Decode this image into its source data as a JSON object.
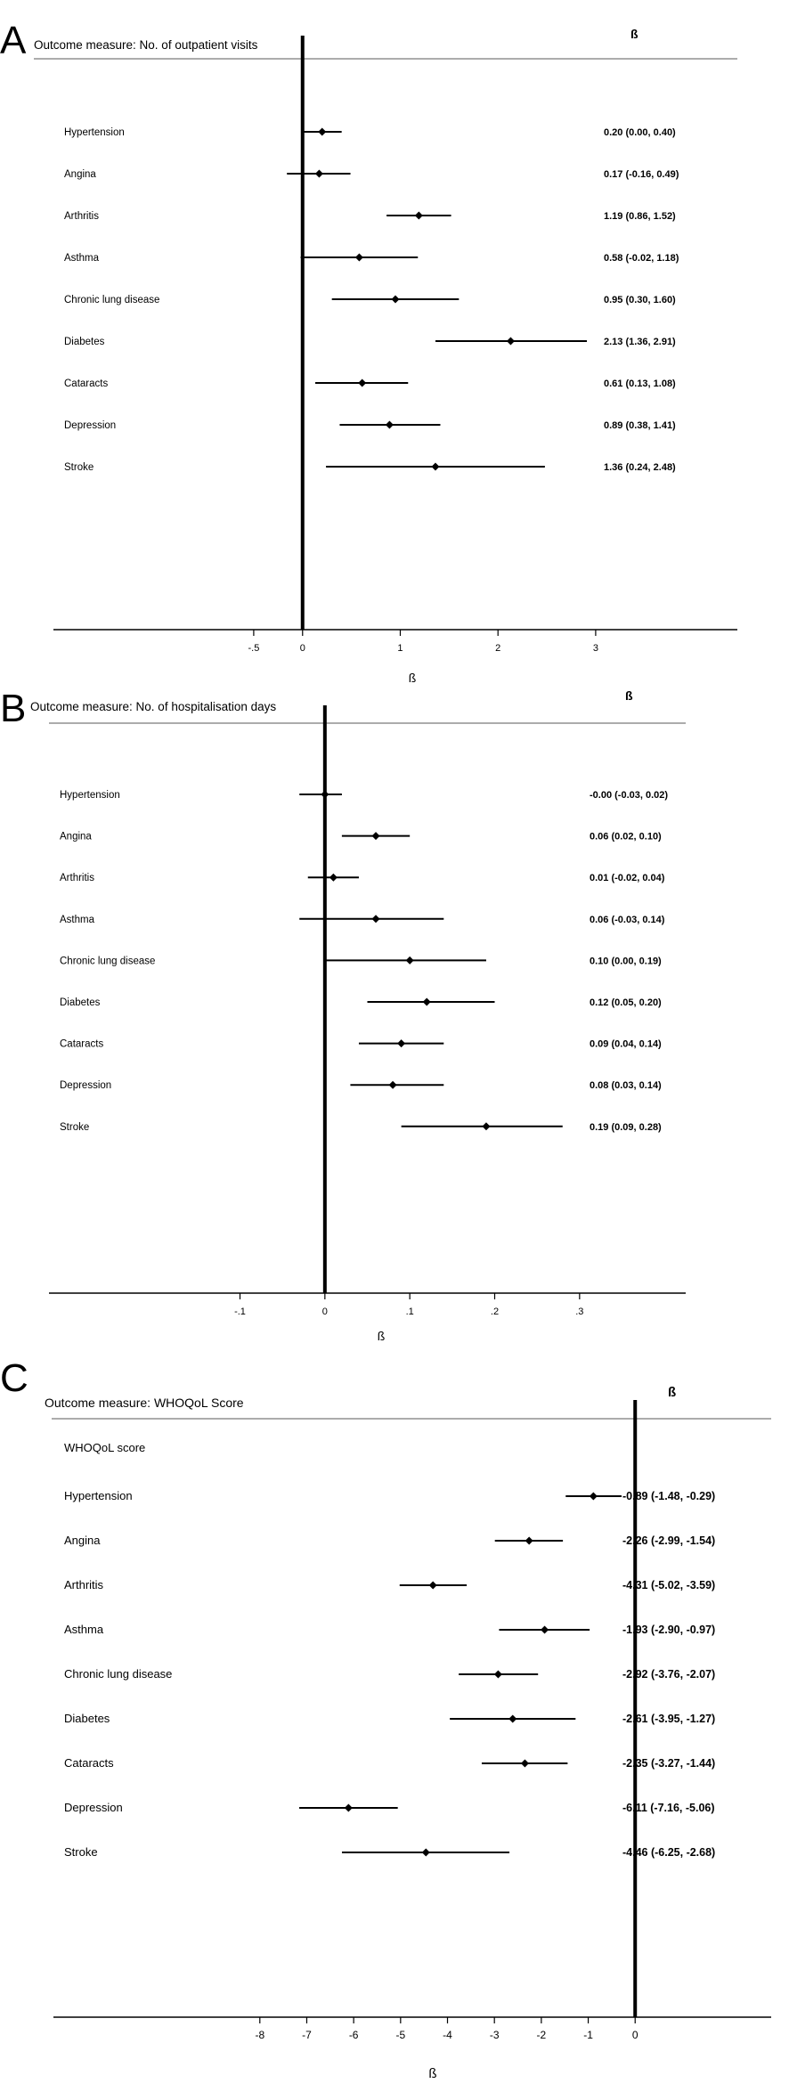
{
  "chart_data": [
    {
      "type": "forest",
      "panel_letter": "A",
      "title": "Outcome measure: No. of outpatient visits",
      "estimate_header": "ß",
      "xlabel": "ß",
      "x_ticks": [
        -0.5,
        0,
        1,
        2,
        3
      ],
      "x_tick_labels": [
        "-.5",
        "0",
        "1",
        "2",
        "3"
      ],
      "xlim": [
        -2.55,
        4.45
      ],
      "rows": [
        {
          "label": "Hypertension",
          "beta": 0.2,
          "lo": 0.0,
          "hi": 0.4,
          "text": "0.20 (0.00, 0.40)"
        },
        {
          "label": "Angina",
          "beta": 0.17,
          "lo": -0.16,
          "hi": 0.49,
          "text": "0.17 (-0.16, 0.49)"
        },
        {
          "label": "Arthritis",
          "beta": 1.19,
          "lo": 0.86,
          "hi": 1.52,
          "text": "1.19 (0.86, 1.52)"
        },
        {
          "label": "Asthma",
          "beta": 0.58,
          "lo": -0.02,
          "hi": 1.18,
          "text": "0.58 (-0.02, 1.18)"
        },
        {
          "label": "Chronic lung disease",
          "beta": 0.95,
          "lo": 0.3,
          "hi": 1.6,
          "text": "0.95 (0.30, 1.60)"
        },
        {
          "label": "Diabetes",
          "beta": 2.13,
          "lo": 1.36,
          "hi": 2.91,
          "text": "2.13 (1.36, 2.91)"
        },
        {
          "label": "Cataracts",
          "beta": 0.61,
          "lo": 0.13,
          "hi": 1.08,
          "text": "0.61 (0.13, 1.08)"
        },
        {
          "label": "Depression",
          "beta": 0.89,
          "lo": 0.38,
          "hi": 1.41,
          "text": "0.89 (0.38, 1.41)"
        },
        {
          "label": "Stroke",
          "beta": 1.36,
          "lo": 0.24,
          "hi": 2.48,
          "text": "1.36 (0.24, 2.48)"
        }
      ]
    },
    {
      "type": "forest",
      "panel_letter": "B",
      "title": "Outcome measure: No. of hospitalisation days",
      "estimate_header": "ß",
      "xlabel": "ß",
      "x_ticks": [
        -0.1,
        0,
        0.1,
        0.2,
        0.3
      ],
      "x_tick_labels": [
        "-.1",
        "0",
        ".1",
        ".2",
        ".3"
      ],
      "xlim": [
        -0.325,
        0.425
      ],
      "rows": [
        {
          "label": "Hypertension",
          "beta": 0.0,
          "lo": -0.03,
          "hi": 0.02,
          "text": "-0.00 (-0.03, 0.02)"
        },
        {
          "label": "Angina",
          "beta": 0.06,
          "lo": 0.02,
          "hi": 0.1,
          "text": "0.06 (0.02, 0.10)"
        },
        {
          "label": "Arthritis",
          "beta": 0.01,
          "lo": -0.02,
          "hi": 0.04,
          "text": "0.01 (-0.02, 0.04)"
        },
        {
          "label": "Asthma",
          "beta": 0.06,
          "lo": -0.03,
          "hi": 0.14,
          "text": "0.06 (-0.03, 0.14)"
        },
        {
          "label": "Chronic lung disease",
          "beta": 0.1,
          "lo": 0.0,
          "hi": 0.19,
          "text": "0.10 (0.00, 0.19)"
        },
        {
          "label": "Diabetes",
          "beta": 0.12,
          "lo": 0.05,
          "hi": 0.2,
          "text": "0.12 (0.05, 0.20)"
        },
        {
          "label": "Cataracts",
          "beta": 0.09,
          "lo": 0.04,
          "hi": 0.14,
          "text": "0.09 (0.04, 0.14)"
        },
        {
          "label": "Depression",
          "beta": 0.08,
          "lo": 0.03,
          "hi": 0.14,
          "text": "0.08 (0.03, 0.14)"
        },
        {
          "label": "Stroke",
          "beta": 0.19,
          "lo": 0.09,
          "hi": 0.28,
          "text": "0.19 (0.09, 0.28)"
        }
      ]
    },
    {
      "type": "forest",
      "panel_letter": "C",
      "title": "Outcome measure: WHOQoL Score",
      "estimate_header": "ß",
      "xlabel": "ß",
      "subheading": "WHOQoL score",
      "x_ticks": [
        -8,
        -7,
        -6,
        -5,
        -4,
        -3,
        -2,
        -1,
        0
      ],
      "x_tick_labels": [
        "-8",
        "-7",
        "-6",
        "-5",
        "-4",
        "-3",
        "-2",
        "-1",
        "0"
      ],
      "xlim": [
        -12.4,
        2.9
      ],
      "rows": [
        {
          "label": "Hypertension",
          "beta": -0.89,
          "lo": -1.48,
          "hi": -0.29,
          "text": "-0.89 (-1.48, -0.29)"
        },
        {
          "label": "Angina",
          "beta": -2.26,
          "lo": -2.99,
          "hi": -1.54,
          "text": "-2.26 (-2.99, -1.54)"
        },
        {
          "label": "Arthritis",
          "beta": -4.31,
          "lo": -5.02,
          "hi": -3.59,
          "text": "-4.31 (-5.02, -3.59)"
        },
        {
          "label": "Asthma",
          "beta": -1.93,
          "lo": -2.9,
          "hi": -0.97,
          "text": "-1.93 (-2.90, -0.97)"
        },
        {
          "label": "Chronic lung disease",
          "beta": -2.92,
          "lo": -3.76,
          "hi": -2.07,
          "text": "-2.92 (-3.76, -2.07)"
        },
        {
          "label": "Diabetes",
          "beta": -2.61,
          "lo": -3.95,
          "hi": -1.27,
          "text": "-2.61 (-3.95, -1.27)"
        },
        {
          "label": "Cataracts",
          "beta": -2.35,
          "lo": -3.27,
          "hi": -1.44,
          "text": "-2.35 (-3.27, -1.44)"
        },
        {
          "label": "Depression",
          "beta": -6.11,
          "lo": -7.16,
          "hi": -5.06,
          "text": "-6.11 (-7.16, -5.06)"
        },
        {
          "label": "Stroke",
          "beta": -4.46,
          "lo": -6.25,
          "hi": -2.68,
          "text": "-4.46 (-6.25, -2.68)"
        }
      ]
    }
  ]
}
